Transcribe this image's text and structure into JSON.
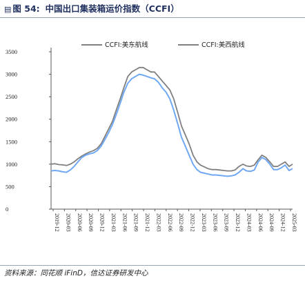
{
  "caption": {
    "icon": "chart-icon",
    "number": "图 54:",
    "title": "中国出口集装箱运价指数（CCFI）"
  },
  "source": "资料来源：同花顺 iFinD，信达证券研发中心",
  "chart_data": {
    "type": "line",
    "ylim": [
      0,
      3500
    ],
    "yticks": [
      0,
      500,
      1000,
      1500,
      2000,
      2500,
      3000,
      3500
    ],
    "legend_position": "top",
    "xtick_labels": [
      "2019-12",
      "2020-03",
      "2020-06",
      "2020-09",
      "2020-12",
      "2021-03",
      "2021-06",
      "2021-09",
      "2021-12",
      "2022-03",
      "2022-06",
      "2022-09",
      "2022-12",
      "2023-03",
      "2023-06",
      "2023-09",
      "2023-12",
      "2024-03",
      "2024-06",
      "2024-09",
      "2024-12",
      "2025-03"
    ],
    "series": [
      {
        "name": "CCFI:美东航线",
        "color": "#7f7f7f",
        "x": [
          "2019-12",
          "2020-01",
          "2020-02",
          "2020-03",
          "2020-04",
          "2020-05",
          "2020-06",
          "2020-07",
          "2020-08",
          "2020-09",
          "2020-10",
          "2020-11",
          "2020-12",
          "2021-01",
          "2021-02",
          "2021-03",
          "2021-04",
          "2021-05",
          "2021-06",
          "2021-07",
          "2021-08",
          "2021-09",
          "2021-10",
          "2021-11",
          "2021-12",
          "2022-01",
          "2022-02",
          "2022-03",
          "2022-04",
          "2022-05",
          "2022-06",
          "2022-07",
          "2022-08",
          "2022-09",
          "2022-10",
          "2022-11",
          "2022-12",
          "2023-01",
          "2023-02",
          "2023-03",
          "2023-04",
          "2023-05",
          "2023-06",
          "2023-07",
          "2023-08",
          "2023-09",
          "2023-10",
          "2023-11",
          "2023-12",
          "2024-01",
          "2024-02",
          "2024-03",
          "2024-04",
          "2024-05",
          "2024-06",
          "2024-07",
          "2024-08",
          "2024-09",
          "2024-10",
          "2024-11",
          "2024-12",
          "2025-01",
          "2025-02",
          "2025-03"
        ],
        "values": [
          1000,
          1010,
          990,
          985,
          970,
          1000,
          1050,
          1120,
          1180,
          1230,
          1270,
          1300,
          1350,
          1450,
          1620,
          1780,
          1950,
          2200,
          2450,
          2700,
          2950,
          3050,
          3100,
          3150,
          3150,
          3100,
          3050,
          3050,
          2950,
          2850,
          2750,
          2650,
          2450,
          2150,
          1850,
          1650,
          1450,
          1200,
          1050,
          980,
          940,
          900,
          880,
          880,
          870,
          860,
          850,
          850,
          870,
          950,
          1000,
          960,
          950,
          980,
          1100,
          1200,
          1150,
          1050,
          950,
          950,
          1000,
          1050,
          950,
          1000
        ]
      },
      {
        "name": "CCFI:美西航线",
        "color": "#6fa8f5",
        "x": [
          "2019-12",
          "2020-01",
          "2020-02",
          "2020-03",
          "2020-04",
          "2020-05",
          "2020-06",
          "2020-07",
          "2020-08",
          "2020-09",
          "2020-10",
          "2020-11",
          "2020-12",
          "2021-01",
          "2021-02",
          "2021-03",
          "2021-04",
          "2021-05",
          "2021-06",
          "2021-07",
          "2021-08",
          "2021-09",
          "2021-10",
          "2021-11",
          "2021-12",
          "2022-01",
          "2022-02",
          "2022-03",
          "2022-04",
          "2022-05",
          "2022-06",
          "2022-07",
          "2022-08",
          "2022-09",
          "2022-10",
          "2022-11",
          "2022-12",
          "2023-01",
          "2023-02",
          "2023-03",
          "2023-04",
          "2023-05",
          "2023-06",
          "2023-07",
          "2023-08",
          "2023-09",
          "2023-10",
          "2023-11",
          "2023-12",
          "2024-01",
          "2024-02",
          "2024-03",
          "2024-04",
          "2024-05",
          "2024-06",
          "2024-07",
          "2024-08",
          "2024-09",
          "2024-10",
          "2024-11",
          "2024-12",
          "2025-01",
          "2025-02",
          "2025-03"
        ],
        "values": [
          850,
          860,
          850,
          830,
          820,
          870,
          950,
          1050,
          1150,
          1200,
          1230,
          1250,
          1300,
          1400,
          1550,
          1700,
          1880,
          2100,
          2350,
          2600,
          2800,
          2900,
          2950,
          3000,
          2980,
          2950,
          2920,
          2900,
          2820,
          2700,
          2600,
          2450,
          2200,
          1900,
          1600,
          1400,
          1200,
          1000,
          880,
          820,
          800,
          780,
          760,
          760,
          750,
          740,
          730,
          740,
          760,
          820,
          900,
          850,
          840,
          870,
          1050,
          1150,
          1100,
          1000,
          880,
          880,
          920,
          980,
          860,
          900
        ]
      }
    ]
  }
}
